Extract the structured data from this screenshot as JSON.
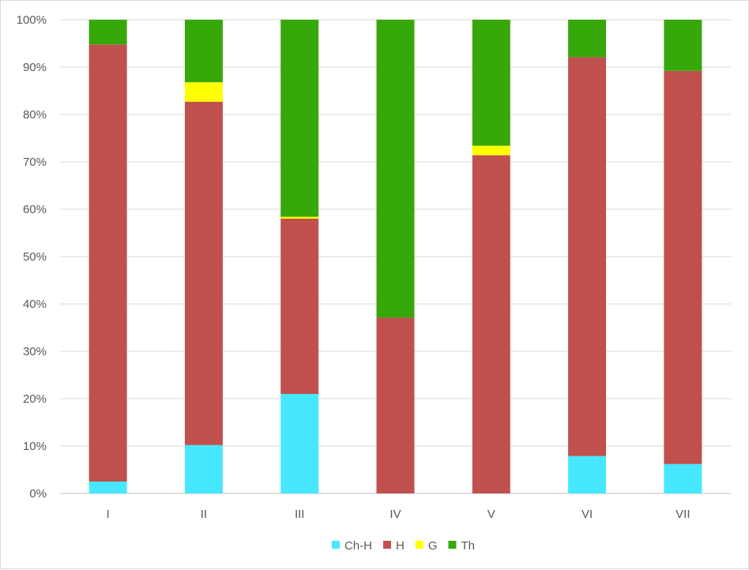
{
  "chart_data": {
    "type": "bar",
    "stacked": true,
    "percent_stacked": true,
    "categories": [
      "I",
      "II",
      "III",
      "IV",
      "V",
      "VI",
      "VII"
    ],
    "series": [
      {
        "name": "Ch-H",
        "color": "#47e8ff",
        "values": [
          2.5,
          10.2,
          21.0,
          0,
          0,
          7.9,
          6.2
        ]
      },
      {
        "name": "H",
        "color": "#c0504d",
        "values": [
          92.3,
          72.5,
          37.0,
          37.1,
          71.4,
          84.2,
          83.0
        ]
      },
      {
        "name": "G",
        "color": "#ffff00",
        "values": [
          0,
          4.1,
          0.4,
          0,
          2.0,
          0,
          0
        ]
      },
      {
        "name": "Th",
        "color": "#36a80a",
        "values": [
          5.2,
          13.2,
          41.6,
          62.9,
          26.6,
          7.9,
          10.8
        ]
      }
    ],
    "yticks": [
      "0%",
      "10%",
      "20%",
      "30%",
      "40%",
      "50%",
      "60%",
      "70%",
      "80%",
      "90%",
      "100%"
    ],
    "ylim": [
      0,
      100
    ],
    "grid": true,
    "legend_position": "bottom"
  }
}
